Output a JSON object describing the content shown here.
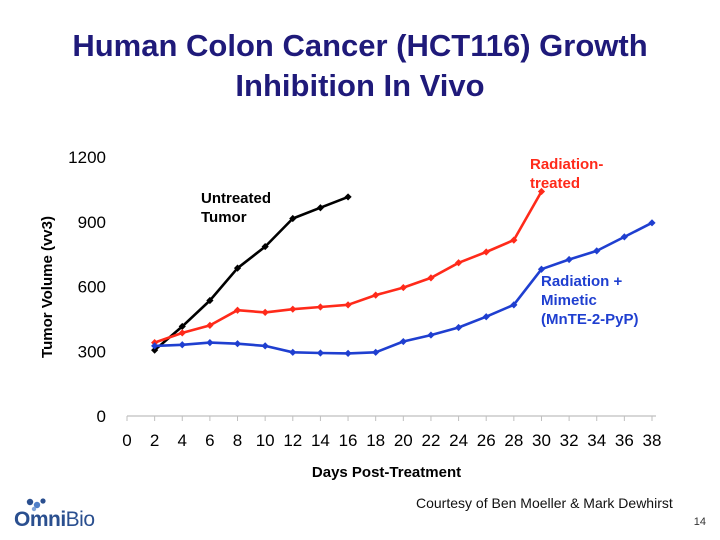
{
  "title_lines": [
    "Human Colon Cancer (HCT116) Growth",
    "Inhibition In Vivo"
  ],
  "footer": "Courtesy of Ben Moeller & Mark Dewhirst",
  "page_number": "14",
  "logo": {
    "text_a": "Omni",
    "text_b": "Bio"
  },
  "colors": {
    "title": "#1f1a7a",
    "untreated": "#000000",
    "radiation": "#ff2a1a",
    "mimetic": "#1f3fd0"
  },
  "chart_data": {
    "type": "line",
    "xlabel": "Days Post-Treatment",
    "ylabel": "Tumor Volume (vv3)",
    "xlim": [
      0,
      38
    ],
    "ylim": [
      0,
      1200
    ],
    "xticks": [
      "0",
      "2",
      "4",
      "6",
      "8",
      "10",
      "12",
      "14",
      "16",
      "18",
      "20",
      "22",
      "24",
      "26",
      "28",
      "30",
      "32",
      "34",
      "36",
      "38"
    ],
    "yticks": [
      "0",
      "300",
      "600",
      "900",
      "1200"
    ],
    "grid": false,
    "legend": "inline labels",
    "series": [
      {
        "name_lines": [
          "Untreated",
          "Tumor"
        ],
        "color": "#000000",
        "x": [
          2,
          4,
          6,
          8,
          10,
          12,
          14,
          16
        ],
        "y": [
          305,
          415,
          535,
          685,
          785,
          915,
          965,
          1015
        ]
      },
      {
        "name_lines": [
          "Radiation-",
          "treated"
        ],
        "color": "#ff2a1a",
        "x": [
          2,
          4,
          6,
          8,
          10,
          12,
          14,
          16,
          18,
          20,
          22,
          24,
          26,
          28,
          30
        ],
        "y": [
          340,
          385,
          420,
          490,
          480,
          495,
          505,
          515,
          560,
          595,
          640,
          710,
          760,
          815,
          1040
        ]
      },
      {
        "name_lines": [
          "Radiation +",
          "Mimetic",
          "(MnTE-2-PyP)"
        ],
        "color": "#1f3fd0",
        "x": [
          2,
          4,
          6,
          8,
          10,
          12,
          14,
          16,
          18,
          20,
          22,
          24,
          26,
          28,
          30,
          32,
          34,
          36,
          38
        ],
        "y": [
          325,
          330,
          340,
          335,
          325,
          295,
          292,
          290,
          295,
          345,
          375,
          410,
          460,
          515,
          680,
          725,
          765,
          830,
          895
        ]
      }
    ]
  }
}
